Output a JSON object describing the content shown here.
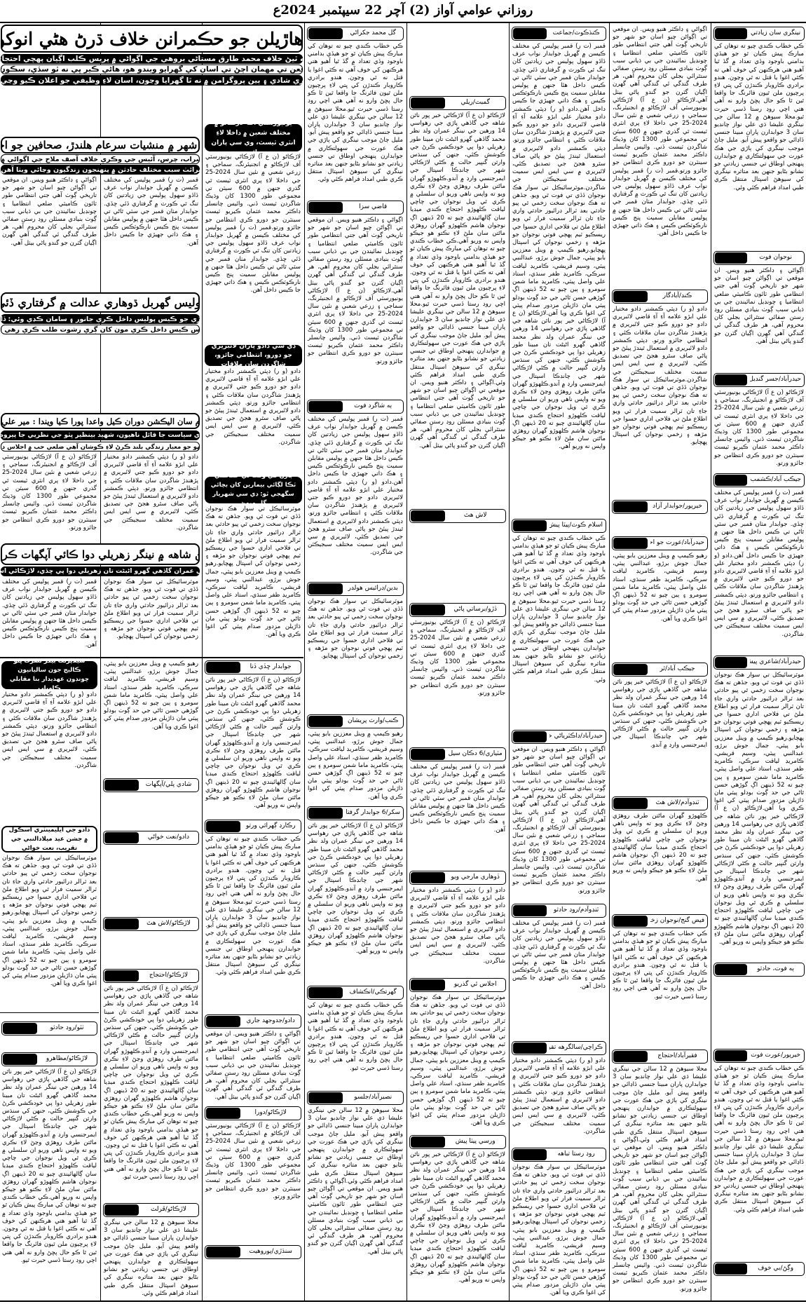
{
  "masthead": {
    "title": "روزاني عوامي آواز (2) آچر 22 سيپٽمبر 2024ع"
  },
  "headlines": {
    "main": {
      "title": "وڳڻ ۾ بيروزگار ڌهاڙيلن جو حڪمرانن خلاف ڌرڻ هڻي انوکو احتجاج نعريبازي",
      "sub1": "ڌهاڙيلن واهر نه ٿيڻ خلاف محمد طارق مستاڻي بروهي جي اڳواڻي ۾ پريس ڪلب اڳيان پهچي احتجاج رڪارڊ ڪرايو",
      "sub2": "اڳ خوشي جي موقعن تي مهمان اچڻ تي اسان کي گهرايو ويندو هو، هاڻي ڪير ڀي نه ٿو سڏي، سڪون ڪاٽي رهيا آهيون",
      "sub3": "ايڪو سائونڊ اچڻ ڪري شادي ۽ ٻين پروگرامن ۾ نه ٿا گهرايا وڃون، اسان لاءِ وظيفي جو اعلان ڪيو وڃي: ڌهاڙيلن جو مطالبو"
    },
    "kaibar": {
      "title": "ڪيبر شهر ۾ منشيات سرعام هلندڙ، صحافين جو احتجاج",
      "sub1": "ڪچي شراب، چرس، آئيس جي وڪري خلاف آصف ملاح جي اڳواڻي ۾ احتجاج",
      "sub2": "شراب وايرائٽ سبب مختلف حادثن ۾ پنهنجون زندگيون وڃائي ويٺا آهن: صحافي"
    },
    "qambar": {
      "title": "قمبر پوليس گهربل ڌوهاري عدالت ۾ گرفتاري ڏئي ڇڏي",
      "sub1": "ذاتي جهيڙي جو ڪيس پوليس داخل ڪري جانور ۽ سامان ڪڍي وئي: ڏاڏو سهول",
      "sub2": "پوليس ڪيس داخل ڪري مون کان ڳري رشوت طلب ڪري رهي آهي"
    },
    "hub": {
      "title": "حب جي عوام سان اليڪشن دوران ڪيل واعدا پورا ڪيا ويندا : مير علي حسن زهري",
      "sub1": "انتقام واري سياست جا قائل ناهيون، شهيد بينظير ڀٽو جي نظريي جا پيروڪار آهيون",
      "sub2": "پ پ عام ماڻهو جو معيار زندگي بلند ڪرڻ لاءِ ڪوشان آهي ضلعي حب ۾ اجلاس دوران ڳالهيون"
    },
    "knshah": {
      "title": "ڪي اين شاهه ۾ نينگر زهريلي دوا ڪائي آپگهات ڪري ڇڏيو",
      "sub1": "14 سالن جي عمران گاڏهي گهرو اڻبڻت تان زهريلي دوا پي ڇڏي، لاڙڪاڻي اسپتال منتقل"
    }
  },
  "boxes": {
    "university": "يونيورسٽي آف لاڙڪاڻو ۾ مختلف شعبن ۾ داخلا لاءِ انٽري ٽيسٽ، وي سي پاران جائزو",
    "dc_dadu": "ڊي سي دادو پاران لائبريري جو دورو، انتظامي جائزو، شاگردن سان ملاقات",
    "vaccination": "ٻارن کي وقت تي حفاظتي ٽڪا لڳائي بيمارين کان بچائي سگهجي ٿو: ڊي سي شهريار گل ميمڻ",
    "college": "سيلاپرنٽ بيگر نصرت ڀٽو ڪاليج جون ساليانيون چونڊون عهديدار بنا مقابلي ڪامياب",
    "milad": "دادو جي ايليمينٽري اسڪول ۾ جشن عيد ميلادالنبي جي تقريب، نعت خواڻي"
  },
  "columns": [
    {
      "datelines": [
        "نينگري سان زيادتي",
        "نوجوان فوت",
        "حيدرآباد/جسر گنڊيل",
        "جيڪب آباد/ڪشمب قائم",
        "حيدرآباد/شاعري پيش",
        "ٻه فوت، حادثو",
        "خيرپور/عورت فوت",
        "وڳڻ/بي خوف"
      ]
    },
    {
      "datelines": [
        "ڪنڊ/آبادگار",
        "خيرپور/جوابدار آزاد",
        "حيدرآباد/عورت جو احتجاج",
        "جيڪب آباد/ٿر",
        "ٽنڊوآدم/لاش هٿ",
        "فيض گنج/نوجوان زخمي",
        "فقيرآباد/احتجاج"
      ]
    },
    {
      "datelines": [
        "ڪنڌڪوٽ/جماعت",
        "اسلام ڪوٽ/پيٽا پيش",
        "حيدرآباد/ڊاڪٽرياڻي خلاف",
        "ٽنڊوآدم/روڊ حادثو",
        "ڪراچي/سالگرهه تقريبون",
        "روڊ رستا تباهه"
      ]
    },
    {
      "datelines": [
        "گمبٽ/ريلي",
        "لاش هٿ",
        "ڏڙو/برساتي پاڻي",
        "مٽياري/6 دڪان سيل",
        "ڏوهاري مارجي ويو",
        "اجلاس ٿي گذريو",
        "ورسي پيٽا پيش"
      ]
    },
    {
      "datelines": [
        "گل محمد جکراڻي",
        "قاضي سزا",
        "ٻه شاگرد فوت",
        "بدين/ڊرائيس هولڊر",
        "ڪنب/وارث پريشان",
        "سکر/6 جوابدار گرفتار",
        "گهرتڪي/انڪشاف",
        "نصيرآباد/جلسو"
      ]
    },
    {
      "datelines": [
        "جوابدار ڇڏي ڏنا",
        "رڪارڊ ڳهرائي ورتو",
        "دادو/جدوجهد جاري",
        "لاڙڪاڻو/دورا",
        "سنڌڙي/پوروهيت"
      ]
    },
    {
      "datelines": [
        "شادي پلي/آپگهات",
        "دادو/نعت خواڻي",
        "لاڙڪاڻو/لاش هٿ",
        "لاڙڪاڻو/احتجاج",
        "لاڙڪاڻو/ڦرلٽ"
      ]
    },
    {
      "datelines": [
        "ٺٽو/روڊ حادثو",
        "لاڙڪاڻو/مظاهرو"
      ]
    }
  ],
  "paragraphs": [
    "ڪي خطاب ڪندي چيو ته توهان کي مبارڪ پيش ڪيان ٿو جو هيڏي بدامني باوجود وڏي تعداد ۾ گڏ ٿيا آهيو هتي هرڪنهن کي خوف آهي ته ڪٿي اغوا يا قتل نه ٿي وڃون. هندو برادري ڪاروبار ڪندڙن کي ڀتي لاءِ پرچيون ملن ٿيون فائرنگ جا واقعا ٿين ٿا ڪو حال پڇڻ وارو نه آهي هتي اچي روڊ رستا ڏسي حيرت ٿيو.",
    "محلا سيوهڻ ۾ 12 سالن جي نينگري عليشا ڌي علي نواز چانڊيو سان 3 جوابدارن پاران مبينا جنسي ڏاڍائي جو واقعو پيش آيو. مليل ڄاڻ موجب نينگري کي ٻاڙي جي هڪ عورت جي سهولتڪاري ۾ جوابدارن پنهنجي اوطاق تي جنسي زيادتي جو نشانو بڻايو جنهن بعد متاثره نينگري کي سيوهڻ اسپتال منتقل ڪري طبي امداد فراهم ڪئي وئي.",
    "اڳواڻي ۽ ڊاڪٽر هنيو ويس. ان موقعي تي اڳواڻن چيو اسان جو شهر جو تاريخي ڳوٺ آهي جتي انتظامي طور ٽائون ڪاميٽي ضلعي انتظاميا ۽ چونڊيل نمائيندن جي بي ڌياني سبب ڳوٺ بنيادي مسئلن روڊ رستن صفائي ستٿرائي بجلي کان محروم آهي، هر طرف گندگي ئي گندگي آهي گهرن اڳيان گٽرن جو گندو پاڻي بيٺل آهي.",
    "لاڙڪاڻو (ن ع آ) لاڙڪاڻي يونيورسٽي آف لاڙڪاڻو ۾ انجنيئرنگ، سماجي ۽ زرعي شعبي ۾ نئين سال 2024-25 جي داخلا لاءِ پري انٽري ٽيسٽ ٿي گذري جنهن ۾ 600 سيٽن تي مجموعي طور 1300 کان وڌيڪ شاگردن ٽيسٽ ڏني. وائيس چانسلر ڊاڪٽر محمد عثمان ڪيريو ٽيسٽ سينٽرن جو دورو ڪري انتظامن جو جائزو ورتو.",
    "قمبر (ت ر) قمبر پوليس کي مختلف ڪيسن ۾ گهربل جوابدار نواب عرف ڏاڏو سهول پوليس جي زيادتين کان تنگ ٿي ڪورٽ ۾ گرفتاري ڏئي ڇڏي. جوابدار مٺان قمبر جي سٽي ٿاڻي تي ڪيس داخل هئا جنهن ۾ پوليس مقابلن سميت پنج ڪيس نارڪوٽڪس ڪيس ۽ هڪ ذاتي جهيڙي جا ڪيس داخل آهن.",
    "دادو (و ر) ڊپٽي ڪمشنر دادو مختيار علي ابڙو علامه آءِ آءِ قاضي لائبريري دادو جو دورو ڪيو جتي لائبريري ۾ پڙهندڙ شاگردن سان ملاقات ڪئي ۽ انتظامي جائزو ورتو. ڊپٽي ڪمشنر دادو لائبريري ۾ استعمال ٿيندڙ پيئڻ جو پاڻي صاف سٿرو هجڻ جي تصديق ڪئي، لائبريري ۾ سي ايس ايس سميت مختلف سبجيڪٽن جي شاگردن.",
    "موٽرسائيڪل تي سوار هڪ نوجوان ڏڏي تي فوت ٿي ويو. جڏهن ته هڪ نوجوان سخت زخمي ٿي پيو حادثي بعد ٽرالر ڊرائيور حادثي واري جاءِ تان ٽرالر سميت فرار ٿي ويو اطلاع ملڻ تي فلاحي اداري حسوا جي ريسڪيو ٽيم پهچي فوتي نوجوان جو مڙهه ۽ زخمي نوجوان کي اسپتال پهچايو.",
    "رهيو ڪيمپ ۾ وينل معززين بابو پيٽي، جمال جوش برڙو، عبدالنبي پيٽي، وسيم قريشي، ڪامريڊ لياقت سرڪي، ڪامريڊ ظفر سنڌي، استاد علي واصل پيٽي، ڪامريڊ ماما شمن سومرو ۽ ٻين چيو ته 52 ڏينهن اڳ گوڙهي حسن ٿاڻي جي حد ڳوٺ بودلو پيٽي مان ڌاڙيلن مزدور صدام پيٽي کي اغوا ڪري ويا آهن.",
    "لاڙڪاڻو (ن ع آ) لاڙڪاڻي خير پور ناٿن شاهه جي گاڏهي پاڙي جي رهواسي 14 ورهين جي نينگر عمران ولد نظر محمد گاڏهي گهرو اڻبڻت تان مبينا طور زهريلي دوا پي خودڪشي ڪرڻ جي ڪوشش ڪئي، جنهن کي سنڌس وارثن گنڀير حالت ۾ ڪڻي لاڙڪاڻي شهر جي چانڊڪا اسپتال جي ايمرجنسي وارڊ ۾ آندو.",
    "ڪلهوڙو گهران ماڻتن طرف روهڙي وڃڻ لاءِ نڪري ويو ته واپس ناهي وريو ان سلسلي ۾ ڪري ٿي ويل نوجوان جي چاچي لياقت ڪلهوڙو احتجاج ڪندي ميڊيا سان ڳالهائيندي چيو ته 20 ڏينهن اڳ نوجوان هاشم ڪلهوڙو گهران روهڙي ماڻتن سان ملڻ لاءِ نڪتو هو جيڪو واپس نه وريو آهي."
  ]
}
